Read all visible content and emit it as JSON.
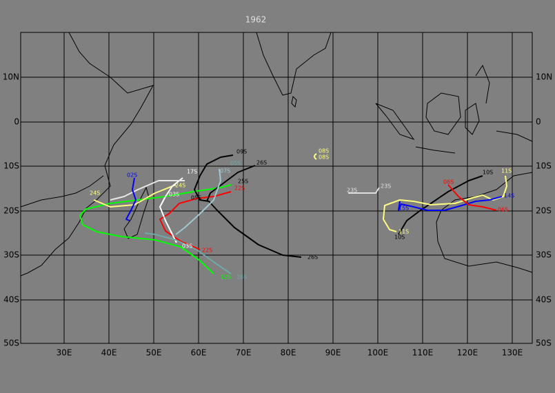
{
  "title": "1962",
  "lat_labels": [
    "10N",
    "0",
    "10S",
    "20S",
    "30S",
    "40S",
    "50S"
  ],
  "lon_labels": [
    "30E",
    "40E",
    "50E",
    "60E",
    "70E",
    "80E",
    "90E",
    "100E",
    "110E",
    "120E",
    "130E"
  ],
  "storm_labels": [
    {
      "text": "09S",
      "color": "#000000"
    },
    {
      "text": "26S",
      "color": "#000000"
    },
    {
      "text": "02S",
      "color": "#0000ff"
    },
    {
      "text": "17S",
      "color": "#ffffff"
    },
    {
      "text": "07S",
      "color": "#a0c8d0"
    },
    {
      "text": "05S",
      "color": "#70a8a8"
    },
    {
      "text": "24S",
      "color": "#ffff80"
    },
    {
      "text": "22S",
      "color": "#ff0000"
    },
    {
      "text": "25S",
      "color": "#000000"
    },
    {
      "text": "24S",
      "color": "#ffff80"
    },
    {
      "text": "03S",
      "color": "#ffffff"
    },
    {
      "text": "05S",
      "color": "#000000"
    },
    {
      "text": "08S",
      "color": "#ffff80"
    },
    {
      "text": "08S",
      "color": "#ffff80"
    },
    {
      "text": "23S",
      "color": "#e0e0e0"
    },
    {
      "text": "23S",
      "color": "#e0e0e0"
    },
    {
      "text": "06S",
      "color": "#ff0000"
    },
    {
      "text": "10S",
      "color": "#000000"
    },
    {
      "text": "11S",
      "color": "#ffff80"
    },
    {
      "text": "14S",
      "color": "#0000ff"
    },
    {
      "text": "06S",
      "color": "#ff0000"
    },
    {
      "text": "15S",
      "color": "#0000ff"
    },
    {
      "text": "11S",
      "color": "#ffff80"
    },
    {
      "text": "10S",
      "color": "#000000"
    },
    {
      "text": "26S",
      "color": "#000000"
    },
    {
      "text": "03S",
      "color": "#ffffff"
    },
    {
      "text": "22S",
      "color": "#ff0000"
    },
    {
      "text": "12S",
      "color": "#00ff00"
    },
    {
      "text": "26S",
      "color": "#70a8a8"
    }
  ]
}
